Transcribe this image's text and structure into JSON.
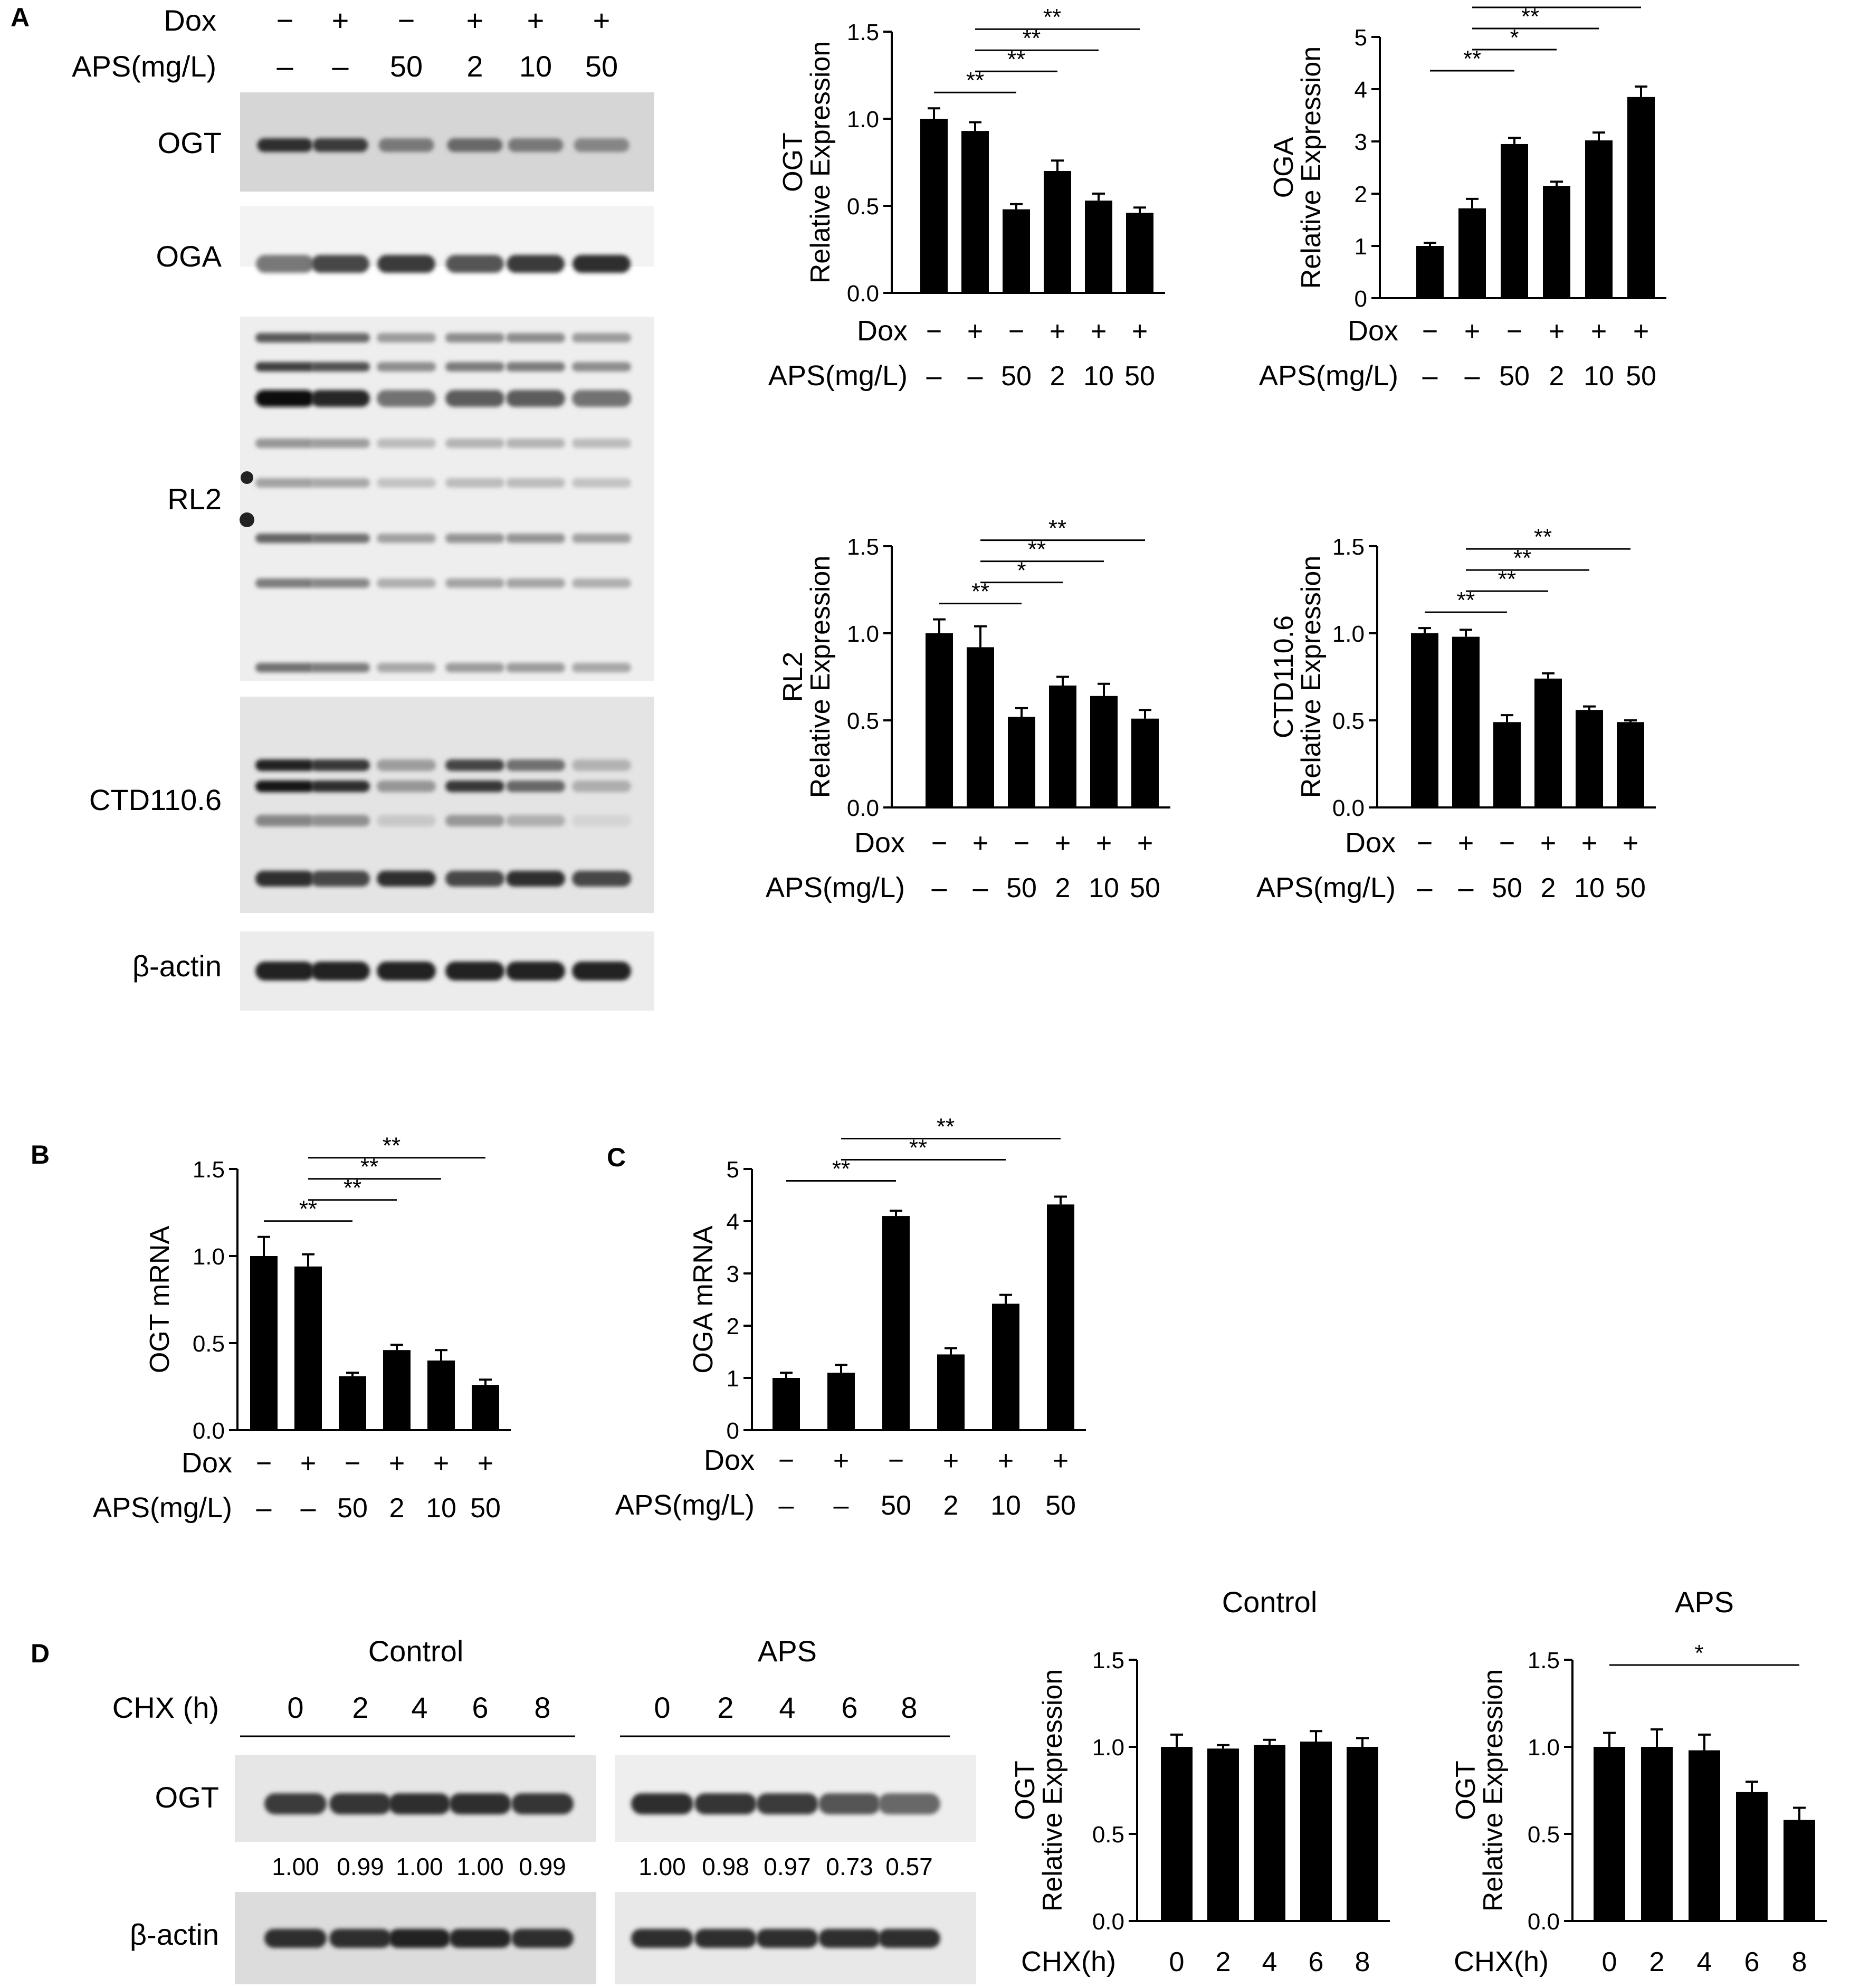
{
  "panels": {
    "A": "A",
    "B": "B",
    "C": "C",
    "D": "D"
  },
  "treatment_rows": {
    "dox_label": "Dox",
    "aps_label": "APS(mg/L)",
    "dox": [
      "−",
      "+",
      "−",
      "+",
      "+",
      "+"
    ],
    "aps": [
      "–",
      "–",
      "50",
      "2",
      "10",
      "50"
    ]
  },
  "cyclo_row": {
    "label_blot": "CHX (h)",
    "label_chart": "CHX(h)",
    "times": [
      "0",
      "2",
      "4",
      "6",
      "8"
    ]
  },
  "blots_a": {
    "labels": [
      "OGT",
      "OGA",
      "RL2",
      "CTD110.6",
      "β-actin"
    ],
    "ogt_intensity": [
      0.85,
      0.8,
      0.55,
      0.62,
      0.55,
      0.5
    ],
    "oga_intensity": [
      0.55,
      0.75,
      0.8,
      0.7,
      0.8,
      0.85
    ],
    "rl2_intensity": [
      1.0,
      0.9,
      0.55,
      0.65,
      0.65,
      0.55
    ],
    "ctd_intensity": [
      1.0,
      0.9,
      0.45,
      0.85,
      0.65,
      0.35
    ],
    "actin_intensity": [
      0.9,
      0.9,
      0.9,
      0.9,
      0.9,
      0.9
    ]
  },
  "blots_d": {
    "labels": [
      "OGT",
      "β-actin"
    ],
    "control_title": "Control",
    "aps_title": "APS",
    "control_quant": [
      "1.00",
      "0.99",
      "1.00",
      "1.00",
      "0.99"
    ],
    "aps_quant": [
      "1.00",
      "0.98",
      "0.97",
      "0.73",
      "0.57"
    ],
    "control_intensity": [
      0.8,
      0.82,
      0.85,
      0.85,
      0.82
    ],
    "aps_intensity": [
      0.85,
      0.82,
      0.8,
      0.7,
      0.62
    ]
  },
  "chart_data": [
    {
      "id": "A-OGT",
      "type": "bar",
      "ylabel": "OGT\nRelative Expression",
      "ylim": [
        0,
        1.5
      ],
      "yticks": [
        "0.0",
        "0.5",
        "1.0",
        "1.5"
      ],
      "values": [
        1.0,
        0.93,
        0.48,
        0.7,
        0.53,
        0.46
      ],
      "errors": [
        0.06,
        0.05,
        0.03,
        0.06,
        0.04,
        0.03
      ],
      "significance": [
        {
          "from": 0,
          "to": 2,
          "label": "**"
        },
        {
          "from": 1,
          "to": 3,
          "label": "**"
        },
        {
          "from": 1,
          "to": 4,
          "label": "**"
        },
        {
          "from": 1,
          "to": 5,
          "label": "**"
        }
      ]
    },
    {
      "id": "A-OGA",
      "type": "bar",
      "ylabel": "OGA\nRelative Expression",
      "ylim": [
        0,
        5
      ],
      "yticks": [
        "0",
        "1",
        "2",
        "3",
        "4",
        "5"
      ],
      "values": [
        1.0,
        1.72,
        2.95,
        2.15,
        3.02,
        3.85
      ],
      "errors": [
        0.06,
        0.18,
        0.12,
        0.08,
        0.15,
        0.2
      ],
      "significance": [
        {
          "from": 0,
          "to": 2,
          "label": "**"
        },
        {
          "from": 1,
          "to": 3,
          "label": "*"
        },
        {
          "from": 1,
          "to": 4,
          "label": "**"
        },
        {
          "from": 1,
          "to": 5,
          "label": "**"
        }
      ]
    },
    {
      "id": "A-RL2",
      "type": "bar",
      "ylabel": "RL2\nRelative Expression",
      "ylim": [
        0,
        1.5
      ],
      "yticks": [
        "0.0",
        "0.5",
        "1.0",
        "1.5"
      ],
      "values": [
        1.0,
        0.92,
        0.52,
        0.7,
        0.64,
        0.51
      ],
      "errors": [
        0.08,
        0.12,
        0.05,
        0.05,
        0.07,
        0.05
      ],
      "significance": [
        {
          "from": 0,
          "to": 2,
          "label": "**"
        },
        {
          "from": 1,
          "to": 3,
          "label": "*"
        },
        {
          "from": 1,
          "to": 4,
          "label": "**"
        },
        {
          "from": 1,
          "to": 5,
          "label": "**"
        }
      ]
    },
    {
      "id": "A-CTD",
      "type": "bar",
      "ylabel": "CTD110.6\nRelative Expression",
      "ylim": [
        0,
        1.5
      ],
      "yticks": [
        "0.0",
        "0.5",
        "1.0",
        "1.5"
      ],
      "values": [
        1.0,
        0.98,
        0.49,
        0.74,
        0.56,
        0.49
      ],
      "errors": [
        0.03,
        0.04,
        0.04,
        0.03,
        0.02,
        0.01
      ],
      "significance": [
        {
          "from": 0,
          "to": 2,
          "label": "**"
        },
        {
          "from": 1,
          "to": 3,
          "label": "**"
        },
        {
          "from": 1,
          "to": 4,
          "label": "**"
        },
        {
          "from": 1,
          "to": 5,
          "label": "**"
        }
      ]
    },
    {
      "id": "B",
      "type": "bar",
      "ylabel": "OGT mRNA",
      "ylim": [
        0,
        1.5
      ],
      "yticks": [
        "0.0",
        "0.5",
        "1.0",
        "1.5"
      ],
      "values": [
        1.0,
        0.94,
        0.31,
        0.46,
        0.4,
        0.26
      ],
      "errors": [
        0.11,
        0.07,
        0.02,
        0.03,
        0.06,
        0.03
      ],
      "significance": [
        {
          "from": 0,
          "to": 2,
          "label": "**"
        },
        {
          "from": 1,
          "to": 3,
          "label": "**"
        },
        {
          "from": 1,
          "to": 4,
          "label": "**"
        },
        {
          "from": 1,
          "to": 5,
          "label": "**"
        }
      ]
    },
    {
      "id": "C",
      "type": "bar",
      "ylabel": "OGA mRNA",
      "ylim": [
        0,
        5
      ],
      "yticks": [
        "0",
        "1",
        "2",
        "3",
        "4",
        "5"
      ],
      "values": [
        1.0,
        1.1,
        4.1,
        1.45,
        2.42,
        4.32
      ],
      "errors": [
        0.1,
        0.15,
        0.1,
        0.12,
        0.17,
        0.15
      ],
      "significance": [
        {
          "from": 0,
          "to": 2,
          "label": "**"
        },
        {
          "from": 1,
          "to": 4,
          "label": "**"
        },
        {
          "from": 1,
          "to": 5,
          "label": "**"
        }
      ]
    },
    {
      "id": "D-Control",
      "type": "bar",
      "title": "Control",
      "ylabel": "OGT\nRelative Expression",
      "ylim": [
        0,
        1.5
      ],
      "yticks": [
        "0.0",
        "0.5",
        "1.0",
        "1.5"
      ],
      "values": [
        1.0,
        0.99,
        1.01,
        1.03,
        1.0
      ],
      "errors": [
        0.07,
        0.02,
        0.03,
        0.06,
        0.05
      ],
      "significance": []
    },
    {
      "id": "D-APS",
      "type": "bar",
      "title": "APS",
      "ylabel": "OGT\nRelative Expression",
      "ylim": [
        0,
        1.5
      ],
      "yticks": [
        "0.0",
        "0.5",
        "1.0",
        "1.5"
      ],
      "values": [
        1.0,
        1.0,
        0.98,
        0.74,
        0.58
      ],
      "errors": [
        0.08,
        0.1,
        0.09,
        0.06,
        0.07
      ],
      "significance": [
        {
          "from": 0,
          "to": 4,
          "label": "*"
        }
      ]
    }
  ]
}
